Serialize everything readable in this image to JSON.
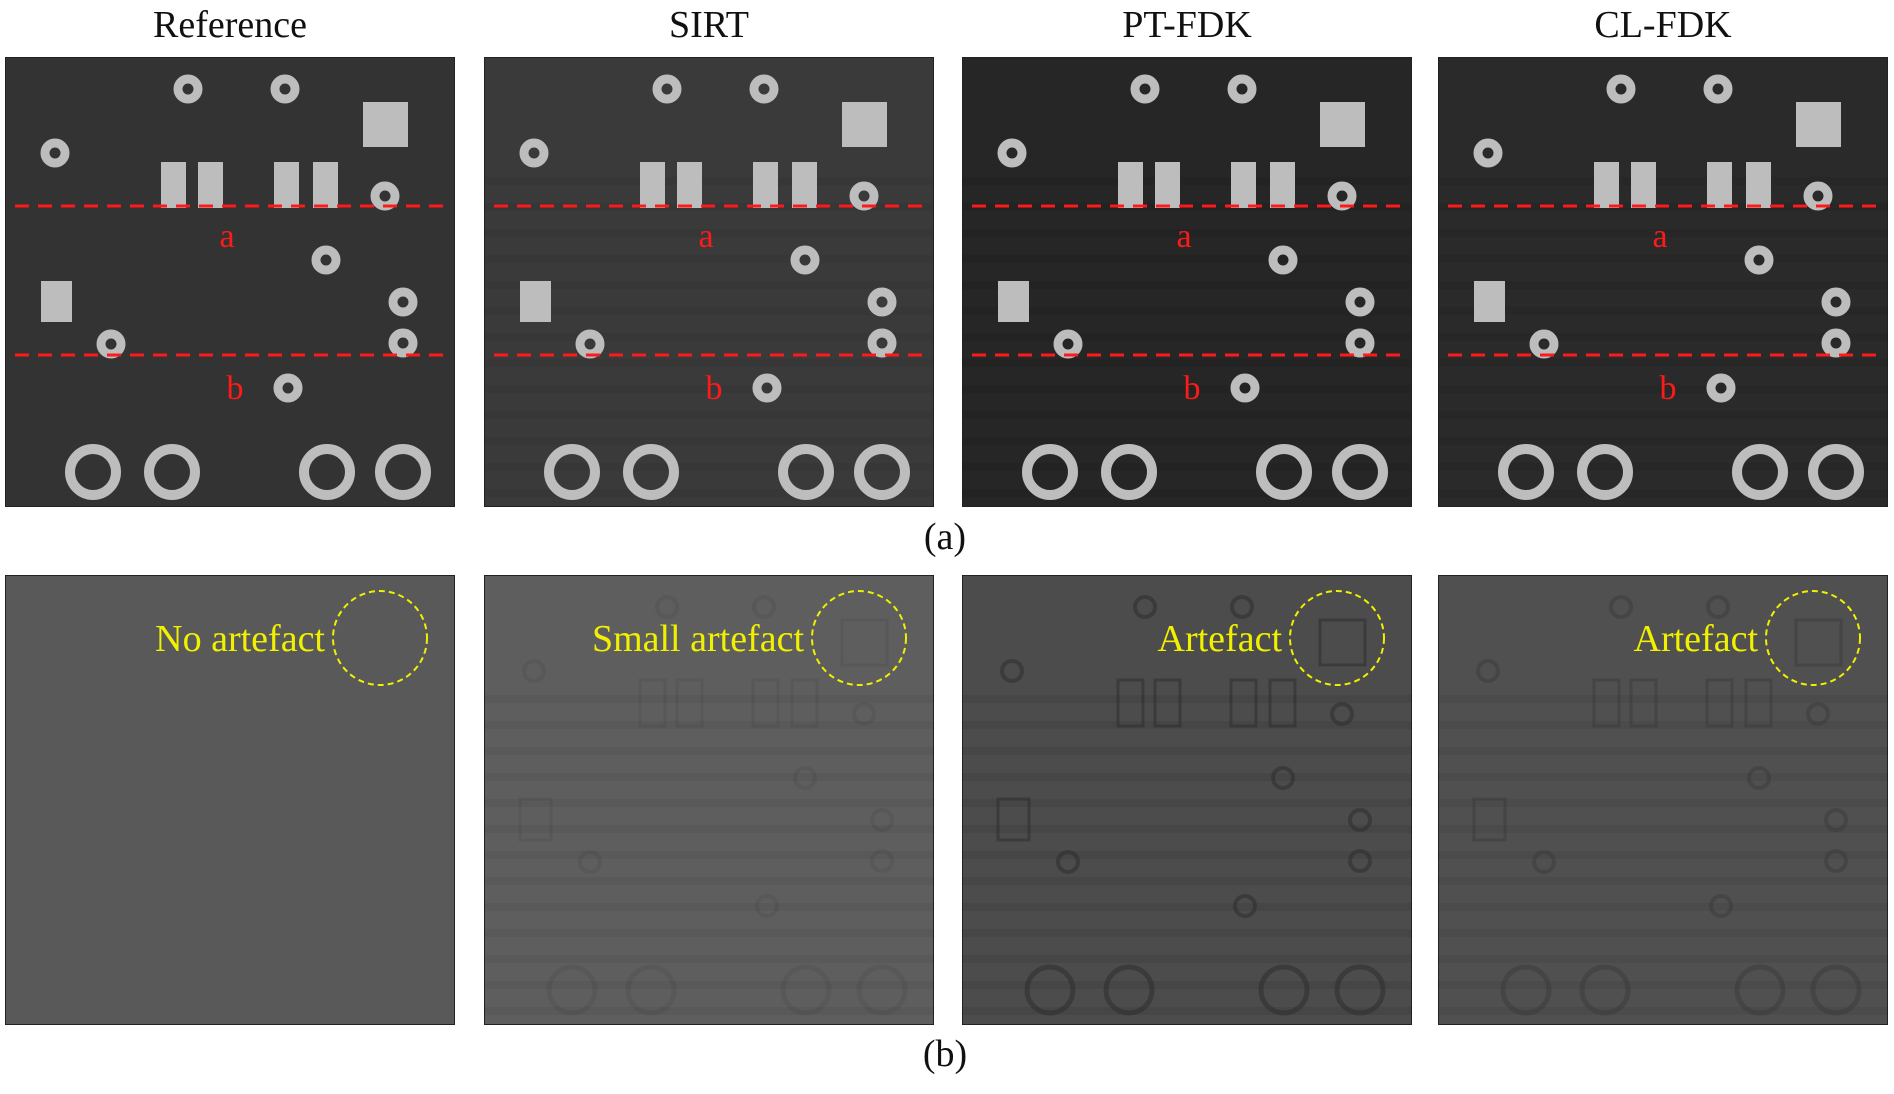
{
  "figure": {
    "columns": [
      {
        "title": "Reference",
        "panel_b_label": "No artefact",
        "row_a_tone": "#333333",
        "row_b_tone": "#595959",
        "noise": 0
      },
      {
        "title": "SIRT",
        "panel_b_label": "Small artefact",
        "row_a_tone": "#3a3a3a",
        "row_b_tone": "#5e5e5e",
        "noise": 0.25
      },
      {
        "title": "PT-FDK",
        "panel_b_label": "Artefact",
        "row_a_tone": "#262626",
        "row_b_tone": "#4c4c4c",
        "noise": 0.6
      },
      {
        "title": "CL-FDK",
        "panel_b_label": "Artefact",
        "row_a_tone": "#2a2a2a",
        "row_b_tone": "#505050",
        "noise": 0.4
      }
    ],
    "line_labels": [
      "a",
      "b"
    ],
    "captions": {
      "a": "(a)",
      "b": "(b)"
    },
    "colors": {
      "line": "#ff1a1a",
      "annotation": "#f0f000",
      "feature": "#bdbdbd"
    }
  }
}
